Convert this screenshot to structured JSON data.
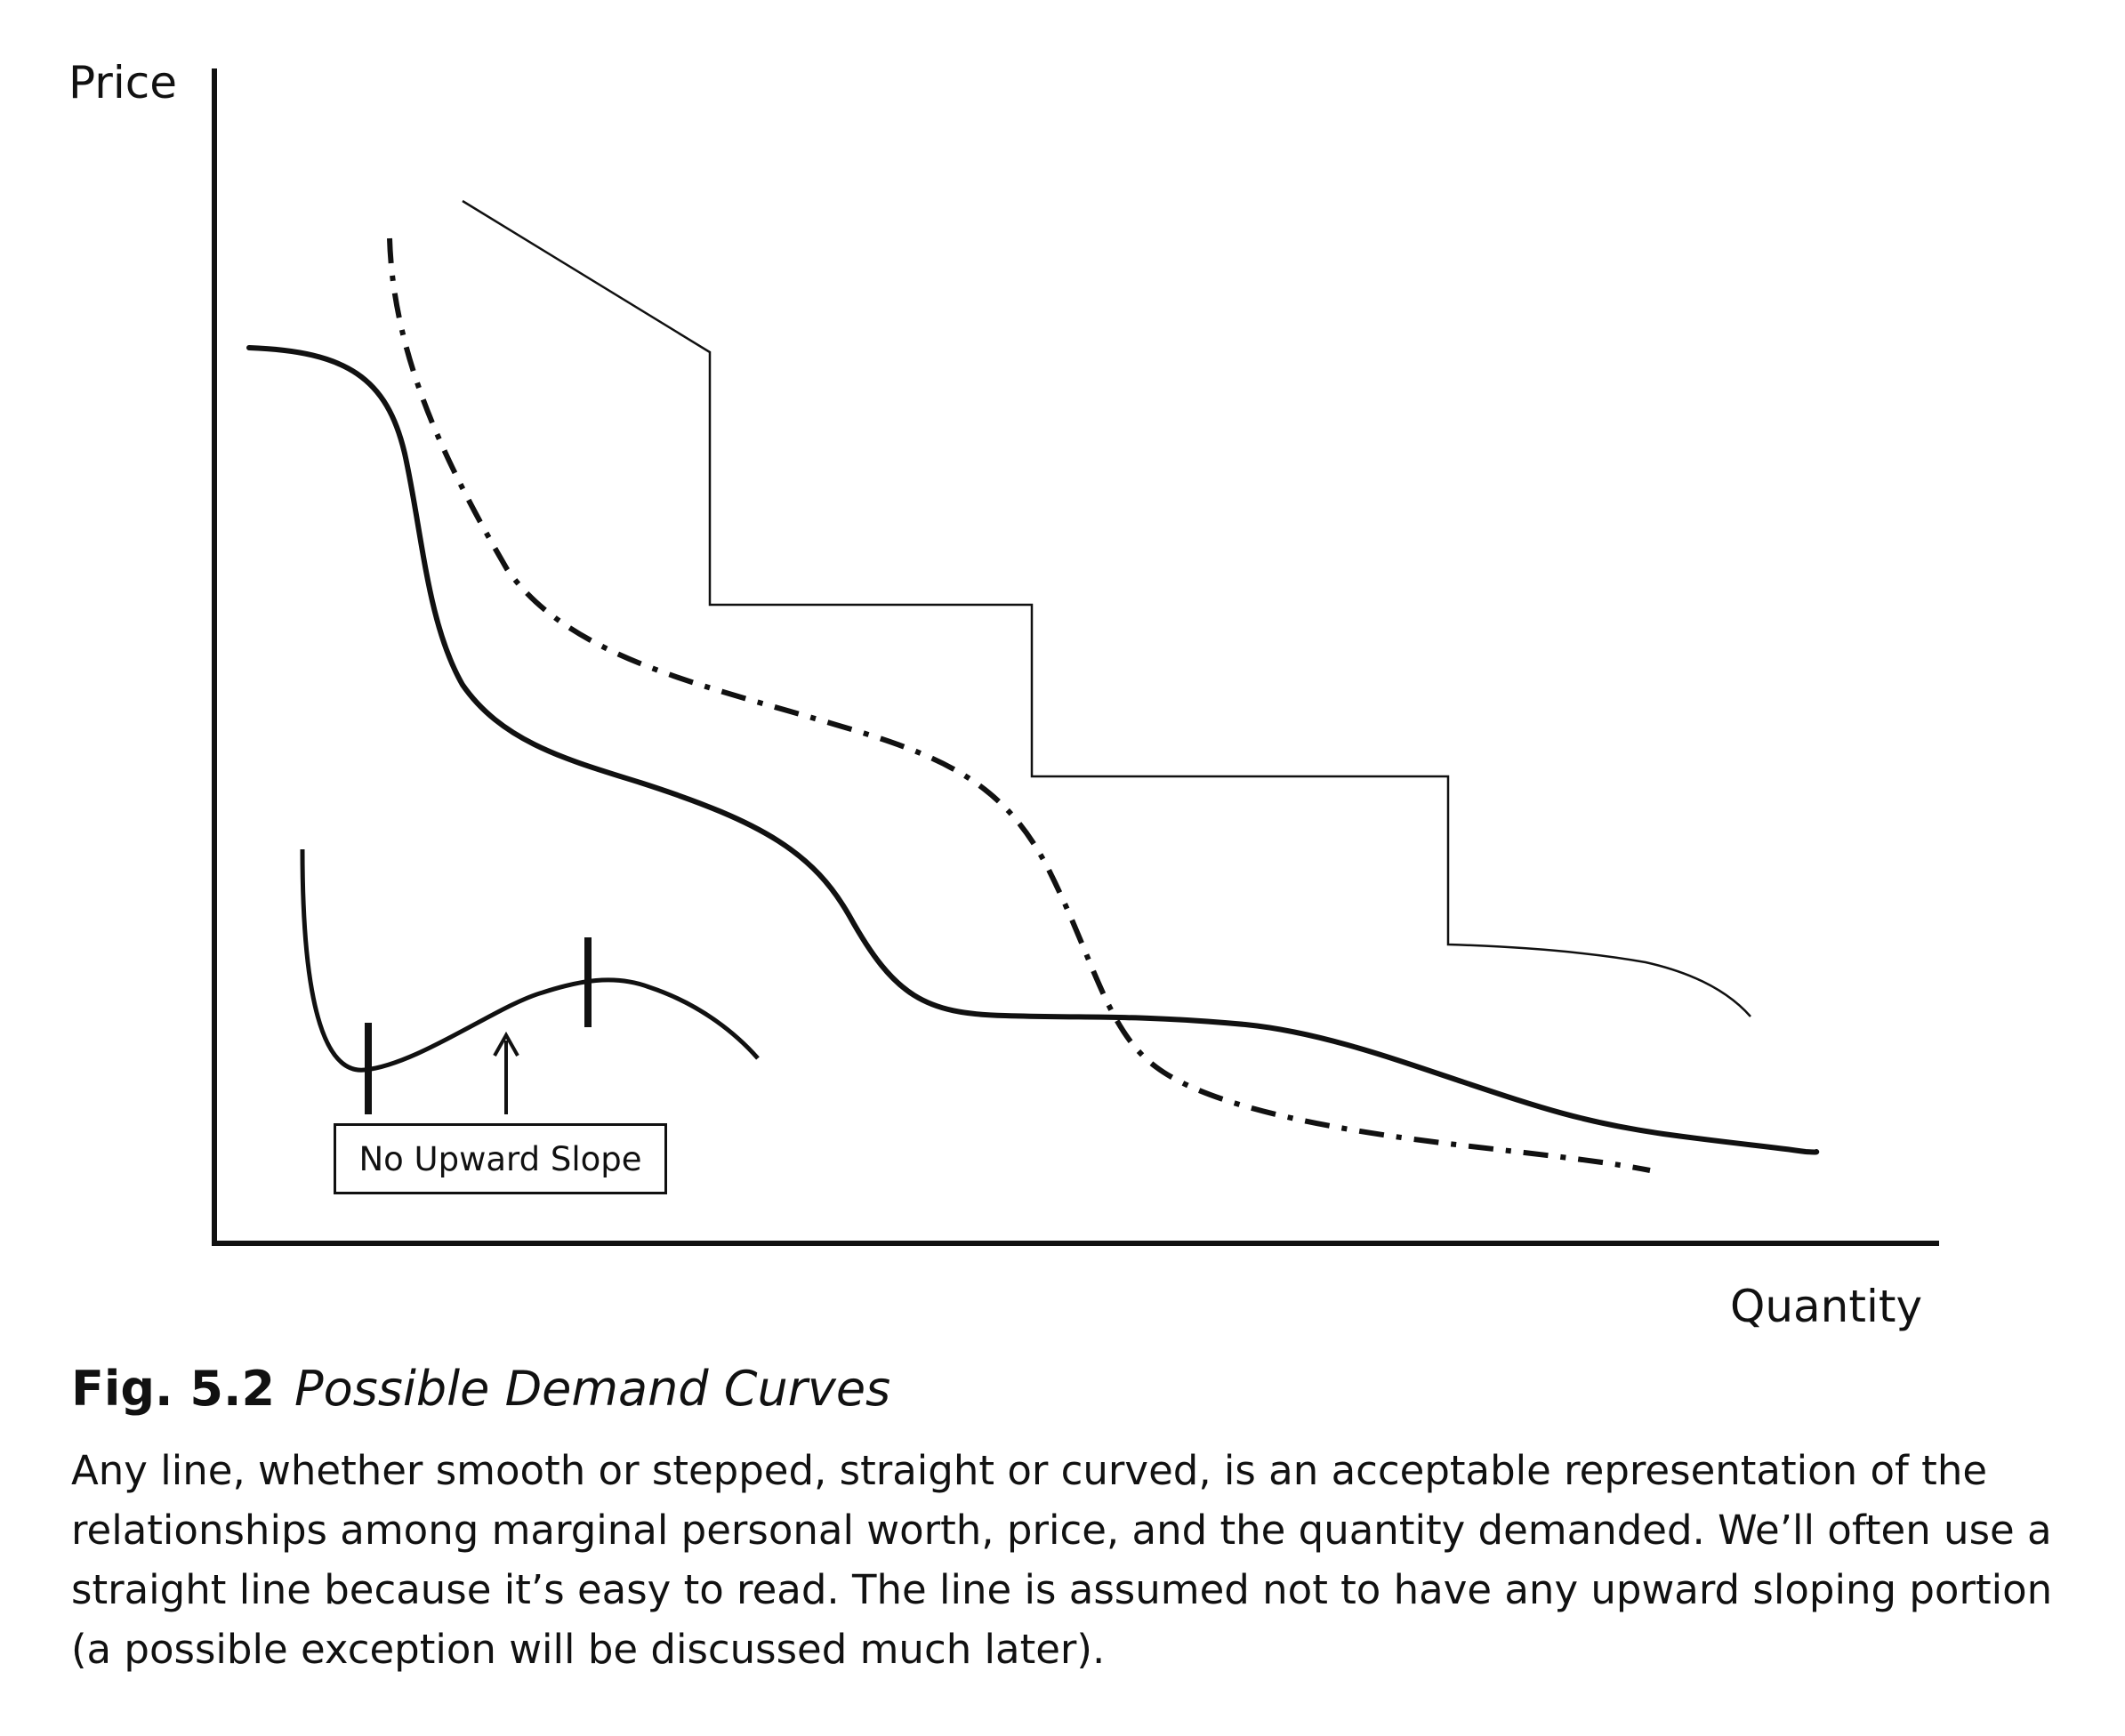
{
  "diagram": {
    "y_axis_label": "Price",
    "x_axis_label": "Quantity",
    "callout_label": "No Upward Slope",
    "curves": [
      {
        "id": "smooth-solid",
        "style": "solid-thick"
      },
      {
        "id": "dash-dot",
        "style": "dash-dot-thick"
      },
      {
        "id": "stepped",
        "style": "solid-thin"
      },
      {
        "id": "inset-upward-slope",
        "style": "solid-medium"
      }
    ],
    "colors": {
      "ink": "#111111",
      "background": "#ffffff"
    }
  },
  "caption": {
    "figure_number": "Fig. 5.2",
    "title": "Possible Demand Curves",
    "body": "Any line, whether smooth or stepped, straight or curved, is an acceptable representation of the relationships among marginal personal worth, price, and the quantity demanded. We’ll often use a straight line because it’s easy to read. The line is assumed not to have any upward sloping portion (a possible exception will be discussed much later)."
  }
}
